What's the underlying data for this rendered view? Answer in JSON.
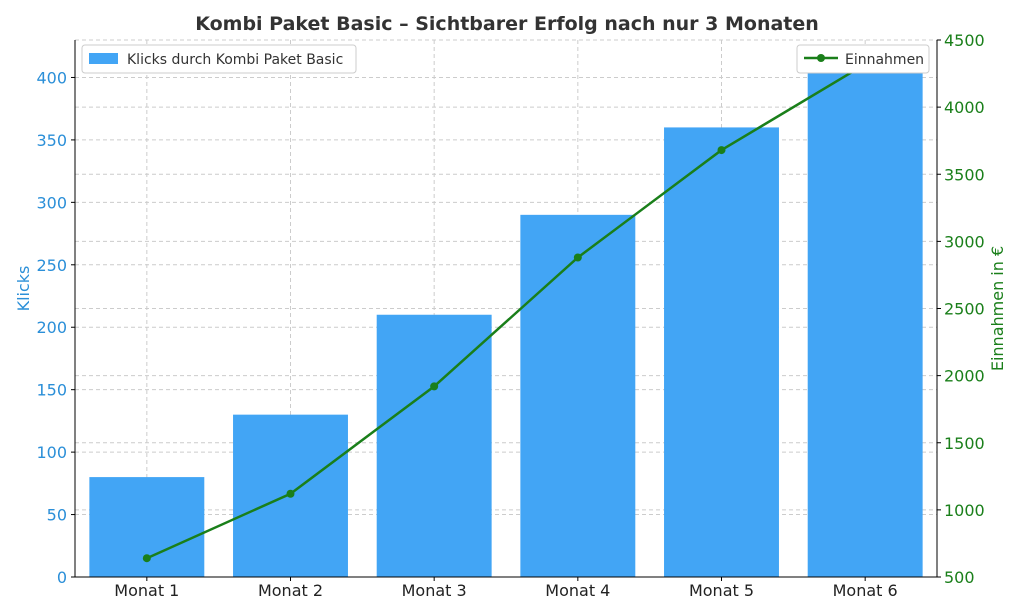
{
  "colors": {
    "bar": "#42a5f5",
    "line": "#1a7f1a",
    "left_axis": "#2b8fd8",
    "right_axis": "#1a7f1a",
    "grid": "#cccccc"
  },
  "chart_data": {
    "type": "bar",
    "title": "Kombi Paket Basic – Sichtbarer Erfolg nach nur 3 Monaten",
    "categories": [
      "Monat 1",
      "Monat 2",
      "Monat 3",
      "Monat 4",
      "Monat 5",
      "Monat 6"
    ],
    "ylabel": "Klicks",
    "y2label": "Einnahmen in €",
    "ylim": [
      0,
      430
    ],
    "y2lim": [
      500,
      4500
    ],
    "yticks": [
      0,
      50,
      100,
      150,
      200,
      250,
      300,
      350,
      400
    ],
    "y2ticks": [
      500,
      1000,
      1500,
      2000,
      2500,
      3000,
      3500,
      4000,
      4500
    ],
    "grid": true,
    "series": [
      {
        "name": "Klicks durch Kombi Paket Basic",
        "type": "bar",
        "axis": "left",
        "values": [
          80,
          130,
          210,
          290,
          360,
          410
        ]
      },
      {
        "name": "Einnahmen",
        "type": "line",
        "axis": "right",
        "marker": "circle",
        "values": [
          640,
          1120,
          1920,
          2880,
          3680,
          4320
        ]
      }
    ],
    "legends": [
      {
        "series": "Klicks durch Kombi Paket Basic",
        "placement": "top-left"
      },
      {
        "series": "Einnahmen",
        "placement": "top-right"
      }
    ]
  }
}
